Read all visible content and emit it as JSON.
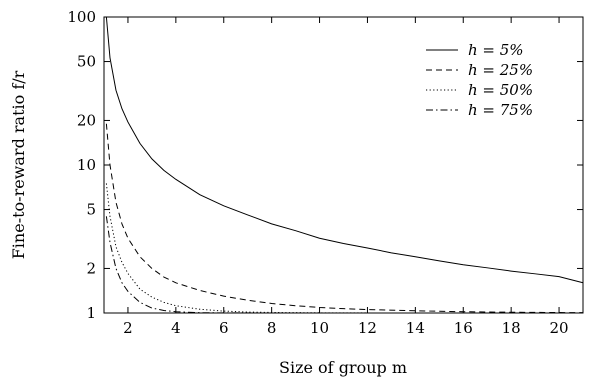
{
  "chart_data": {
    "type": "line",
    "title": "",
    "xlabel": "Size of group m",
    "ylabel": "Fine-to-reward ratio f/r",
    "xlim": [
      1,
      21
    ],
    "ylim": [
      1,
      100
    ],
    "yscale": "log",
    "xticks": [
      2,
      4,
      6,
      8,
      10,
      12,
      14,
      16,
      18,
      20
    ],
    "xtick_labels": [
      "2",
      "4",
      "6",
      "8",
      "10",
      "12",
      "14",
      "16",
      "18",
      "20"
    ],
    "yticks": [
      1,
      2,
      5,
      10,
      20,
      50,
      100
    ],
    "ytick_labels": [
      "1",
      "2",
      "5",
      "10",
      "20",
      "50",
      "100"
    ],
    "grid": false,
    "legend_position": "top-right",
    "series": [
      {
        "name": "h = 5%",
        "line_style": "solid",
        "x": [
          1.1,
          1.25,
          1.5,
          1.75,
          2,
          2.5,
          3,
          3.5,
          4,
          5,
          6,
          7,
          8,
          9,
          10,
          11,
          12,
          13,
          14,
          15,
          16,
          17,
          18,
          19,
          20,
          21
        ],
        "y": [
          100,
          53,
          32,
          24,
          19.5,
          14,
          11,
          9.2,
          8,
          6.3,
          5.3,
          4.6,
          4.0,
          3.6,
          3.2,
          2.95,
          2.75,
          2.55,
          2.4,
          2.25,
          2.12,
          2.02,
          1.92,
          1.84,
          1.76,
          1.6
        ]
      },
      {
        "name": "h = 25%",
        "line_style": "dashed",
        "x": [
          1.1,
          1.25,
          1.5,
          1.75,
          2,
          2.5,
          3,
          3.5,
          4,
          5,
          6,
          7,
          8,
          9,
          10,
          11,
          12,
          14,
          16,
          18,
          21
        ],
        "y": [
          19,
          10,
          5.6,
          4.0,
          3.2,
          2.4,
          2.0,
          1.75,
          1.6,
          1.42,
          1.3,
          1.22,
          1.16,
          1.12,
          1.09,
          1.07,
          1.055,
          1.035,
          1.02,
          1.012,
          1.005
        ]
      },
      {
        "name": "h = 50%",
        "line_style": "dotted",
        "x": [
          1.1,
          1.25,
          1.5,
          1.75,
          2,
          2.5,
          3,
          3.5,
          4,
          5,
          6,
          7,
          8,
          10,
          12,
          15,
          21
        ],
        "y": [
          7.5,
          4.5,
          2.8,
          2.2,
          1.85,
          1.45,
          1.28,
          1.18,
          1.12,
          1.06,
          1.03,
          1.015,
          1.008,
          1.003,
          1.001,
          1.0,
          1.0
        ]
      },
      {
        "name": "h = 75%",
        "line_style": "dash-dot",
        "x": [
          1.1,
          1.25,
          1.5,
          1.75,
          2,
          2.5,
          3,
          3.5,
          4,
          5,
          6,
          8,
          10,
          15,
          21
        ],
        "y": [
          4.5,
          3.0,
          2.0,
          1.6,
          1.4,
          1.18,
          1.08,
          1.04,
          1.02,
          1.005,
          1.002,
          1.0,
          1.0,
          1.0,
          1.0
        ]
      }
    ]
  }
}
